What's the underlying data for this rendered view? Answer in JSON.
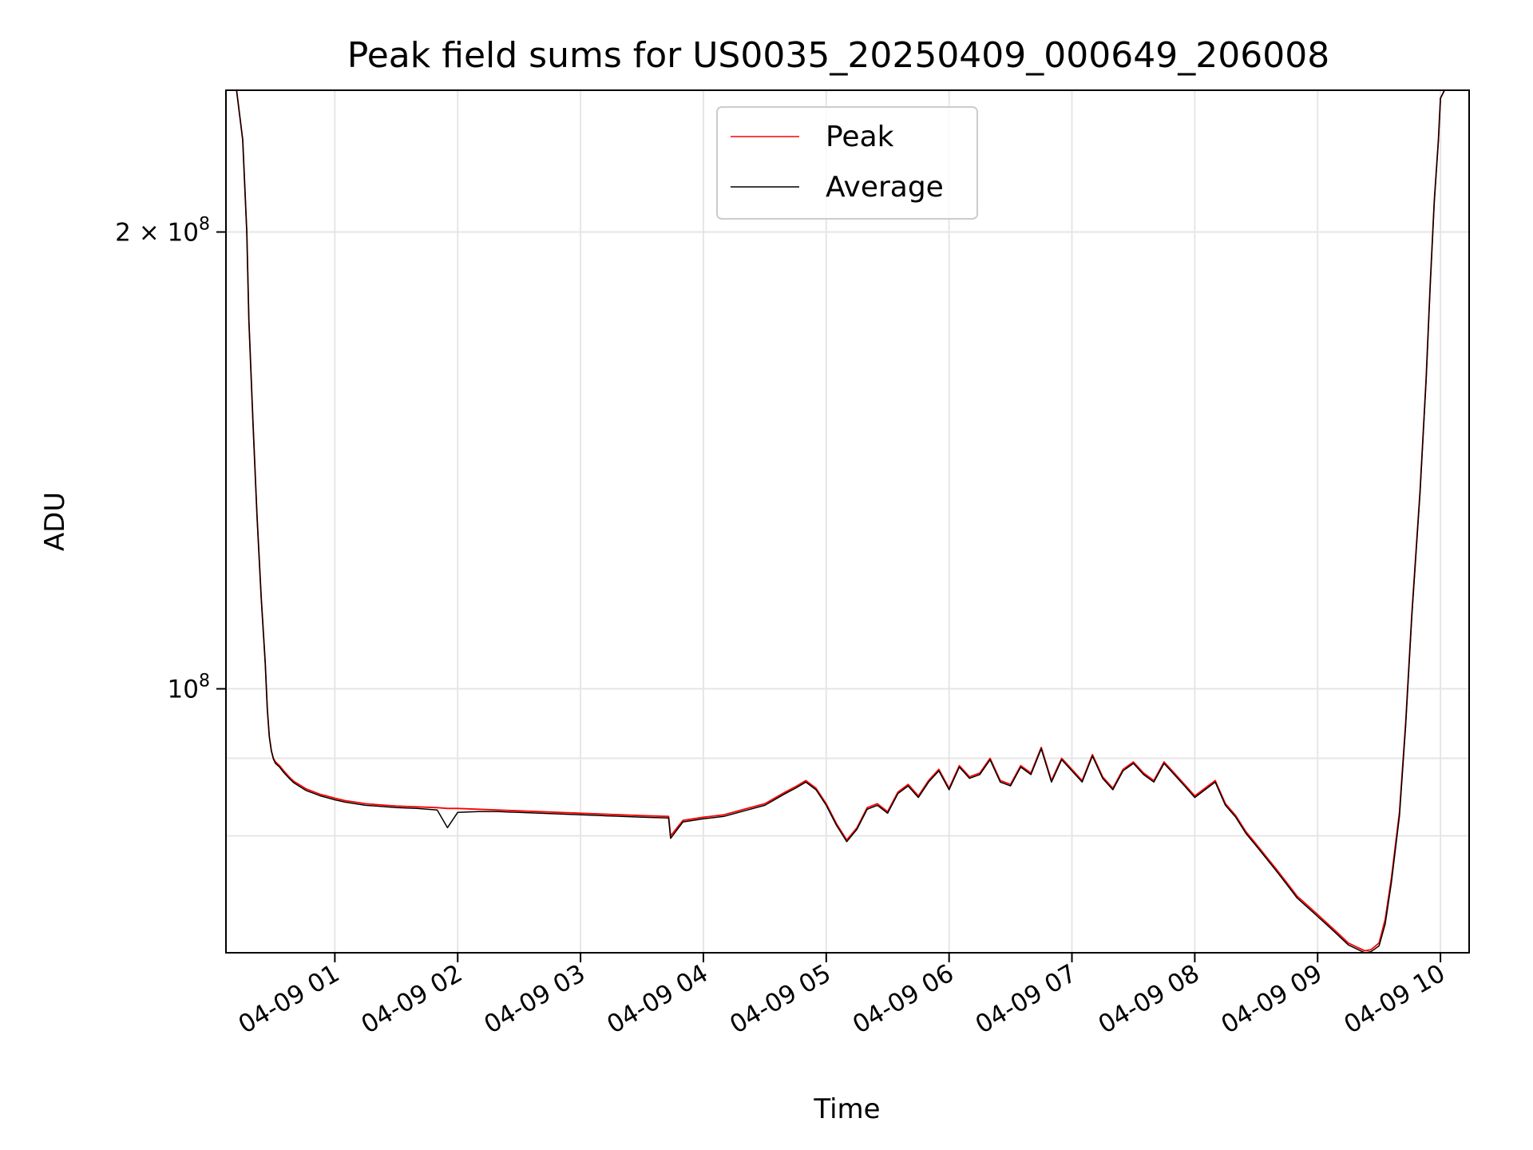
{
  "chart_data": {
    "type": "line",
    "title": "Peak field sums for US0035_20250409_000649_206008",
    "xlabel": "Time",
    "ylabel": "ADU",
    "y_scale": "log",
    "grid": true,
    "legend_position": "upper center",
    "xlim": [
      "2025-04-09T00:06:49",
      "2025-04-09T10:14:00"
    ],
    "ylim": [
      67000000,
      248000000
    ],
    "x_ticks": [
      {
        "t": "2025-04-09T01:00:00",
        "label": "04-09 01"
      },
      {
        "t": "2025-04-09T02:00:00",
        "label": "04-09 02"
      },
      {
        "t": "2025-04-09T03:00:00",
        "label": "04-09 03"
      },
      {
        "t": "2025-04-09T04:00:00",
        "label": "04-09 04"
      },
      {
        "t": "2025-04-09T05:00:00",
        "label": "04-09 05"
      },
      {
        "t": "2025-04-09T06:00:00",
        "label": "04-09 06"
      },
      {
        "t": "2025-04-09T07:00:00",
        "label": "04-09 07"
      },
      {
        "t": "2025-04-09T08:00:00",
        "label": "04-09 08"
      },
      {
        "t": "2025-04-09T09:00:00",
        "label": "04-09 09"
      },
      {
        "t": "2025-04-09T10:00:00",
        "label": "04-09 10"
      }
    ],
    "y_ticks": [
      {
        "v": 100000000,
        "base": "10",
        "exp": "8",
        "coef": ""
      },
      {
        "v": 200000000,
        "base": "10",
        "exp": "8",
        "coef": "2 × "
      }
    ],
    "y_minor_gridlines": [
      80000000,
      90000000
    ],
    "series": [
      {
        "name": "Peak",
        "color": "#ff0000",
        "x": [
          "2025-04-09T00:06:49",
          "2025-04-09T00:12:00",
          "00:15",
          "00:17",
          "00:18",
          "00:20",
          "00:22",
          "00:24",
          "00:26",
          "00:27",
          "00:28",
          "00:29",
          "00:30",
          "00:31",
          "00:33",
          "00:35",
          "00:38",
          "00:40",
          "00:43",
          "00:46",
          "00:50",
          "00:53",
          "00:56",
          "01:00",
          "01:05",
          "01:10",
          "01:15",
          "01:20",
          "01:25",
          "01:30",
          "01:40",
          "01:50",
          "01:55",
          "02:00",
          "02:10",
          "02:20",
          "02:30",
          "02:40",
          "02:50",
          "03:00",
          "03:10",
          "03:20",
          "03:30",
          "03:43",
          "03:44",
          "03:50",
          "04:00",
          "04:10",
          "04:20",
          "04:30",
          "04:40",
          "04:45",
          "04:50",
          "04:55",
          "05:00",
          "05:05",
          "05:10",
          "05:15",
          "05:20",
          "05:25",
          "05:30",
          "05:35",
          "05:40",
          "05:45",
          "05:50",
          "05:55",
          "06:00",
          "06:05",
          "06:10",
          "06:15",
          "06:20",
          "06:25",
          "06:30",
          "06:35",
          "06:40",
          "06:45",
          "06:50",
          "06:55",
          "07:00",
          "07:05",
          "07:10",
          "07:15",
          "07:20",
          "07:25",
          "07:30",
          "07:35",
          "07:40",
          "07:45",
          "07:50",
          "07:55",
          "08:00",
          "08:05",
          "08:10",
          "08:15",
          "08:20",
          "08:25",
          "08:30",
          "08:35",
          "08:40",
          "08:45",
          "08:50",
          "08:55",
          "09:00",
          "09:05",
          "09:10",
          "09:15",
          "09:20",
          "09:23",
          "09:26",
          "09:30",
          "09:33",
          "09:36",
          "09:40",
          "09:43",
          "09:46",
          "09:50",
          "09:53",
          "09:55",
          "09:57",
          "09:59",
          "10:00",
          "10:02",
          "10:14"
        ],
        "y": [
          248000000,
          248000000,
          230000000,
          200000000,
          175000000,
          150000000,
          130000000,
          115000000,
          104000000,
          97000000,
          93000000,
          91000000,
          90000000,
          89500000,
          89000000,
          88300000,
          87400000,
          86900000,
          86400000,
          85900000,
          85500000,
          85200000,
          85000000,
          84700000,
          84400000,
          84200000,
          84000000,
          83900000,
          83800000,
          83700000,
          83600000,
          83500000,
          83400000,
          83400000,
          83300000,
          83200000,
          83100000,
          83000000,
          82900000,
          82800000,
          82700000,
          82600000,
          82500000,
          82400000,
          80000000,
          81900000,
          82300000,
          82600000,
          83300000,
          84000000,
          85500000,
          86200000,
          87000000,
          86000000,
          84000000,
          81500000,
          79500000,
          81000000,
          83500000,
          84000000,
          83000000,
          85500000,
          86500000,
          85000000,
          87000000,
          88500000,
          86000000,
          89000000,
          87500000,
          88000000,
          90000000,
          87000000,
          86500000,
          89000000,
          88000000,
          91500000,
          87000000,
          90000000,
          88500000,
          87000000,
          90500000,
          87500000,
          86000000,
          88500000,
          89500000,
          88000000,
          87000000,
          89500000,
          88000000,
          86500000,
          85000000,
          86000000,
          87000000,
          84000000,
          82500000,
          80500000,
          79000000,
          77500000,
          76000000,
          74500000,
          73000000,
          72000000,
          71000000,
          70000000,
          69000000,
          68000000,
          67500000,
          67200000,
          67300000,
          68000000,
          70500000,
          75000000,
          83000000,
          95000000,
          112000000,
          135000000,
          160000000,
          185000000,
          210000000,
          230000000,
          245000000,
          248000000,
          248000000
        ]
      },
      {
        "name": "Average",
        "color": "#000000",
        "x": [
          "2025-04-09T00:06:49",
          "2025-04-09T00:12:00",
          "00:15",
          "00:17",
          "00:18",
          "00:20",
          "00:22",
          "00:24",
          "00:26",
          "00:27",
          "00:28",
          "00:29",
          "00:30",
          "00:31",
          "00:33",
          "00:35",
          "00:38",
          "00:40",
          "00:43",
          "00:46",
          "00:50",
          "00:53",
          "00:56",
          "01:00",
          "01:05",
          "01:10",
          "01:15",
          "01:20",
          "01:25",
          "01:30",
          "01:40",
          "01:50",
          "01:55",
          "02:00",
          "02:10",
          "02:20",
          "02:30",
          "02:40",
          "02:50",
          "03:00",
          "03:10",
          "03:20",
          "03:30",
          "03:43",
          "03:44",
          "03:50",
          "04:00",
          "04:10",
          "04:20",
          "04:30",
          "04:40",
          "04:45",
          "04:50",
          "04:55",
          "05:00",
          "05:05",
          "05:10",
          "05:15",
          "05:20",
          "05:25",
          "05:30",
          "05:35",
          "05:40",
          "05:45",
          "05:50",
          "05:55",
          "06:00",
          "06:05",
          "06:10",
          "06:15",
          "06:20",
          "06:25",
          "06:30",
          "06:35",
          "06:40",
          "06:45",
          "06:50",
          "06:55",
          "07:00",
          "07:05",
          "07:10",
          "07:15",
          "07:20",
          "07:25",
          "07:30",
          "07:35",
          "07:40",
          "07:45",
          "07:50",
          "07:55",
          "08:00",
          "08:05",
          "08:10",
          "08:15",
          "08:20",
          "08:25",
          "08:30",
          "08:35",
          "08:40",
          "08:45",
          "08:50",
          "08:55",
          "09:00",
          "09:05",
          "09:10",
          "09:15",
          "09:20",
          "09:23",
          "09:26",
          "09:30",
          "09:33",
          "09:36",
          "09:40",
          "09:43",
          "09:46",
          "09:50",
          "09:53",
          "09:55",
          "09:57",
          "09:59",
          "10:00",
          "10:02",
          "10:14"
        ],
        "y": [
          248000000,
          248000000,
          230000000,
          200000000,
          175000000,
          150000000,
          130000000,
          115000000,
          104000000,
          97000000,
          93000000,
          91000000,
          89900000,
          89300000,
          88800000,
          88100000,
          87200000,
          86700000,
          86200000,
          85700000,
          85300000,
          85000000,
          84800000,
          84500000,
          84200000,
          84000000,
          83800000,
          83700000,
          83600000,
          83500000,
          83400000,
          83200000,
          81000000,
          82900000,
          83000000,
          83000000,
          82900000,
          82800000,
          82700000,
          82600000,
          82500000,
          82400000,
          82300000,
          82200000,
          79700000,
          81700000,
          82100000,
          82400000,
          83100000,
          83800000,
          85300000,
          86000000,
          86800000,
          85800000,
          83800000,
          81300000,
          79300000,
          80800000,
          83300000,
          83800000,
          82800000,
          85300000,
          86300000,
          84800000,
          86800000,
          88300000,
          85800000,
          88800000,
          87300000,
          87800000,
          89800000,
          86800000,
          86300000,
          88800000,
          87800000,
          91300000,
          86800000,
          89800000,
          88300000,
          86800000,
          90300000,
          87300000,
          85800000,
          88300000,
          89300000,
          87800000,
          86800000,
          89300000,
          87800000,
          86300000,
          84800000,
          85800000,
          86800000,
          83800000,
          82300000,
          80300000,
          78800000,
          77300000,
          75800000,
          74300000,
          72800000,
          71800000,
          70800000,
          69800000,
          68800000,
          67800000,
          67300000,
          67000000,
          67100000,
          67700000,
          70000000,
          74500000,
          82500000,
          94500000,
          111500000,
          134500000,
          159500000,
          184500000,
          209500000,
          229500000,
          245000000,
          248000000,
          248000000
        ]
      }
    ]
  }
}
